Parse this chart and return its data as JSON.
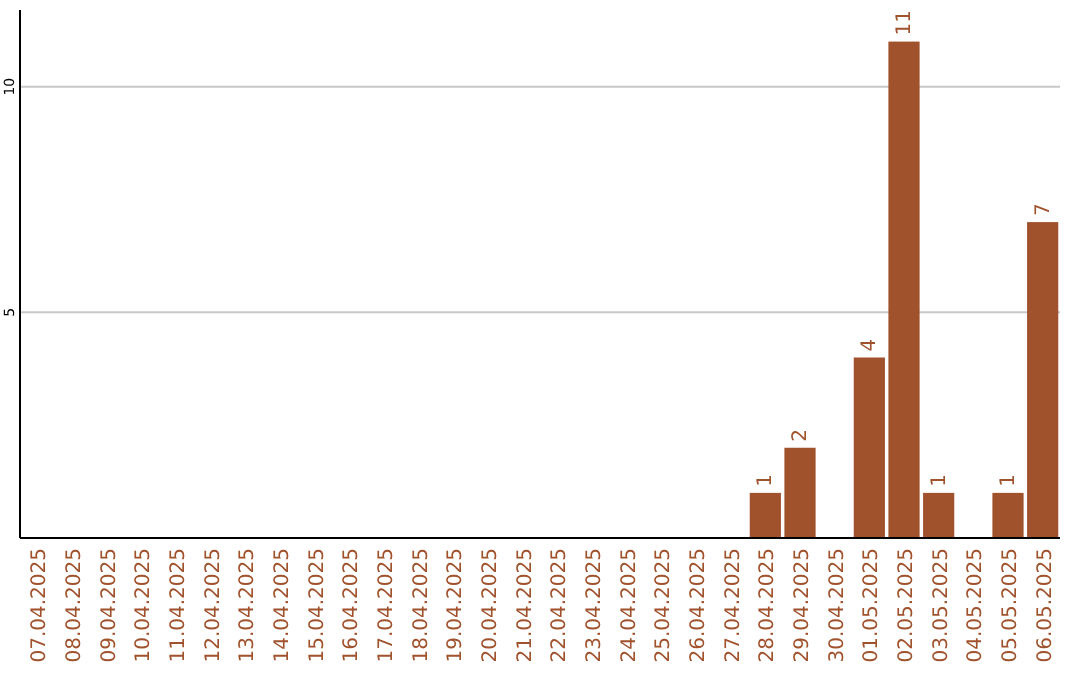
{
  "chart_data": {
    "type": "bar",
    "categories": [
      "07.04.2025",
      "08.04.2025",
      "09.04.2025",
      "10.04.2025",
      "11.04.2025",
      "12.04.2025",
      "13.04.2025",
      "14.04.2025",
      "15.04.2025",
      "16.04.2025",
      "17.04.2025",
      "18.04.2025",
      "19.04.2025",
      "20.04.2025",
      "21.04.2025",
      "22.04.2025",
      "23.04.2025",
      "24.04.2025",
      "25.04.2025",
      "26.04.2025",
      "27.04.2025",
      "28.04.2025",
      "29.04.2025",
      "30.04.2025",
      "01.05.2025",
      "02.05.2025",
      "03.05.2025",
      "04.05.2025",
      "05.05.2025",
      "06.05.2025"
    ],
    "values": [
      0,
      0,
      0,
      0,
      0,
      0,
      0,
      0,
      0,
      0,
      0,
      0,
      0,
      0,
      0,
      0,
      0,
      0,
      0,
      0,
      0,
      1,
      2,
      0,
      4,
      11,
      1,
      0,
      1,
      7
    ],
    "value_labels": [
      null,
      null,
      null,
      null,
      null,
      null,
      null,
      null,
      null,
      null,
      null,
      null,
      null,
      null,
      null,
      null,
      null,
      null,
      null,
      null,
      null,
      "1",
      "2",
      null,
      "4",
      "11",
      "1",
      null,
      "1",
      "7"
    ],
    "color": "#a0522d",
    "ylim": [
      0,
      11.7
    ],
    "yticks": [
      5,
      10
    ],
    "grid": "y"
  }
}
